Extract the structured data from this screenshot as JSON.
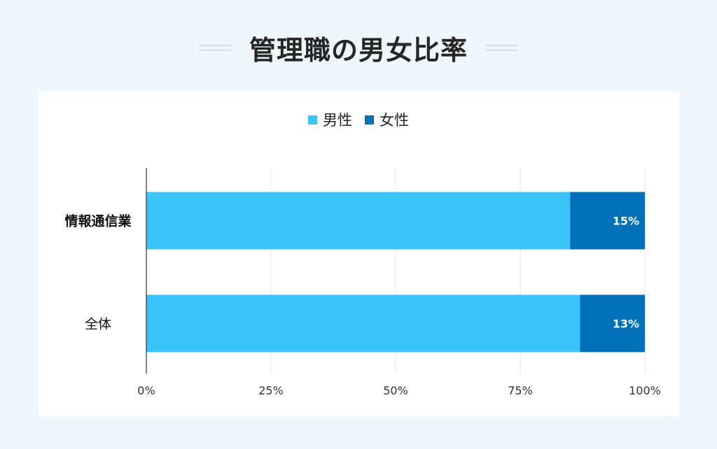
{
  "title": "管理職の男女比率",
  "chart_data": {
    "type": "bar",
    "orientation": "horizontal",
    "stacked": true,
    "title": "管理職の男女比率",
    "categories": [
      "情報通信業",
      "全体"
    ],
    "series": [
      {
        "name": "男性",
        "values": [
          85,
          87
        ],
        "color": "#3bc4fb"
      },
      {
        "name": "女性",
        "values": [
          15,
          13
        ],
        "color": "#0070b8"
      }
    ],
    "data_labels": [
      "15%",
      "13%"
    ],
    "xlim": [
      0,
      100
    ],
    "x_ticks": [
      "0%",
      "25%",
      "50%",
      "75%",
      "100%"
    ],
    "legend_position": "top-center",
    "grid": true
  }
}
